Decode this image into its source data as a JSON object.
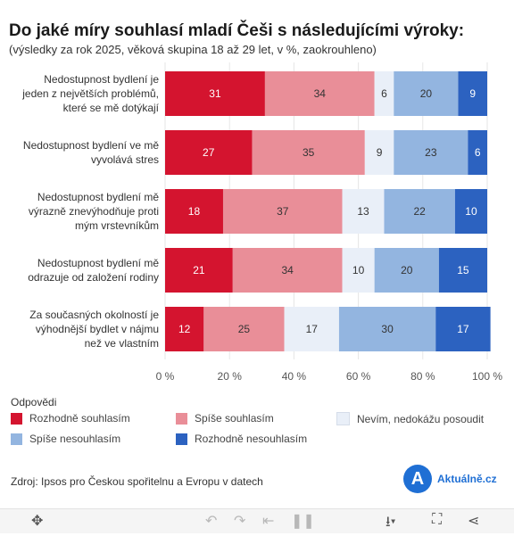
{
  "title": "Do jaké míry souhlasí mladí Češi s následujícími výroky:",
  "subtitle": "(výsledky za rok 2025, věková skupina 18 až 29 let, v %, zaokrouhleno)",
  "legend_title": "Odpovědi",
  "source": "Zdroj: Ipsos pro Českou spořitelnu a Evropu v datech",
  "logo": {
    "letter": "A",
    "text": "Aktuálně.cz"
  },
  "toolbar_icons": [
    "move-icon",
    "undo-icon",
    "redo-icon",
    "revert-icon",
    "pause-icon",
    "download-icon",
    "fullscreen-icon",
    "share-icon"
  ],
  "chart_data": {
    "type": "bar",
    "orientation": "horizontal",
    "stacked": true,
    "categories": [
      [
        "Nedostupnost bydlení je",
        "jeden z největších problémů,",
        "které se mě dotýkají"
      ],
      [
        "Nedostupnost bydlení ve mě",
        "vyvolává stres"
      ],
      [
        "Nedostupnost bydlení mě",
        "výrazně znevýhodňuje proti",
        "mým vrstevníkům"
      ],
      [
        "Nedostupnost bydlení mě",
        "odrazuje od založení rodiny"
      ],
      [
        "Za současných okolností je",
        "výhodnější bydlet v nájmu",
        "než ve vlastním"
      ]
    ],
    "series": [
      {
        "name": "Rozhodně souhlasím",
        "color": "#d4142f",
        "label_color": "#ffffff",
        "values": [
          31,
          27,
          18,
          21,
          12
        ]
      },
      {
        "name": "Spíše souhlasím",
        "color": "#e98e98",
        "label_color": "#333333",
        "values": [
          34,
          35,
          37,
          34,
          25
        ]
      },
      {
        "name": "Nevím, nedokážu posoudit",
        "color": "#e9eff8",
        "label_color": "#333333",
        "values": [
          6,
          9,
          13,
          10,
          17
        ]
      },
      {
        "name": "Spíše nesouhlasím",
        "color": "#93b5e0",
        "label_color": "#333333",
        "values": [
          20,
          23,
          22,
          20,
          30
        ]
      },
      {
        "name": "Rozhodně nesouhlasím",
        "color": "#2c62c0",
        "label_color": "#ffffff",
        "values": [
          9,
          6,
          10,
          15,
          17
        ]
      }
    ],
    "x_ticks": [
      "0 %",
      "20 %",
      "40 %",
      "60 %",
      "80 %",
      "100 %"
    ],
    "xlim": [
      0,
      100
    ],
    "grid": true,
    "legend_position": "bottom"
  }
}
